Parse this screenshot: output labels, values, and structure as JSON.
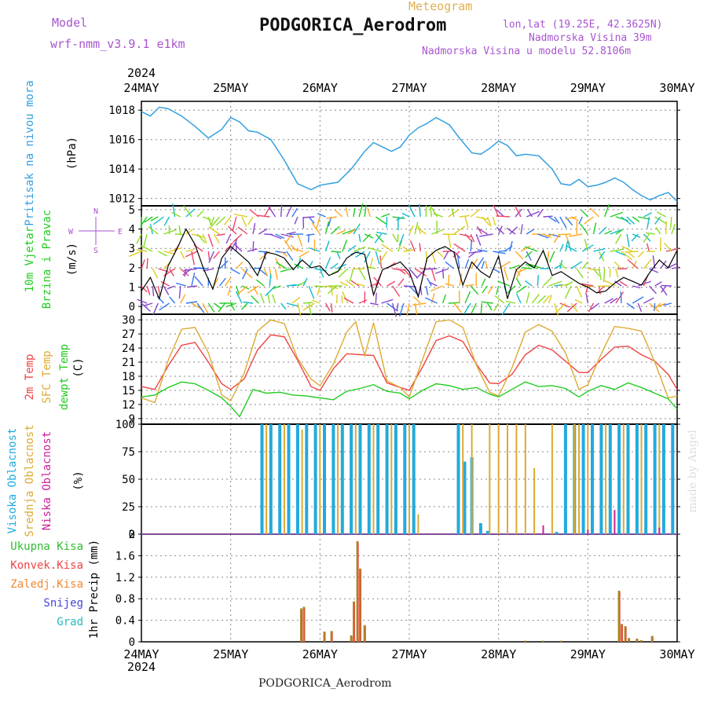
{
  "header": {
    "model_label": "Model",
    "model_value": "wrf-nmm_v3.9.1 e1km",
    "meteogram_label": "Meteogram",
    "station": "PODGORICA_Aerodrom",
    "lonlat": "lon,lat (19.25E, 42.3625N)",
    "elevation": "Nadmorska Visina 39m",
    "model_elevation": "Nadmorska Visina u modelu 52.8106m",
    "footer_station": "PODGORICA_Aerodrom",
    "watermark": "made by Angel",
    "year": "2024"
  },
  "colors": {
    "pressure": "#33a0e0",
    "wind_speed": "#000000",
    "t2m": "#ee4444",
    "sfc_temp": "#ddaa33",
    "dewpt": "#22cc22",
    "cloud_high": "#22aadd",
    "cloud_mid": "#ddaa33",
    "cloud_low": "#cc2299",
    "precip_total": "#33bb33",
    "precip_conv": "#ee4444",
    "precip_gr": "#aa8822",
    "title_purple": "#a855d0",
    "meteogram_gold": "#e0b050"
  },
  "chart_data": [
    {
      "type": "line",
      "x_ticks": [
        "24MAY",
        "25MAY",
        "26MAY",
        "27MAY",
        "28MAY",
        "29MAY",
        "30MAY"
      ],
      "ylabel": [
        "Pritisak na nivou mora",
        "(hPa)"
      ],
      "ylim": [
        1011.5,
        1018.6
      ],
      "yticks": [
        1012,
        1014,
        1016,
        1018
      ],
      "series": [
        {
          "name": "Pritisak na nivou mora",
          "x": [
            0,
            0.1,
            0.2,
            0.3,
            0.45,
            0.6,
            0.75,
            0.9,
            1.0,
            1.1,
            1.2,
            1.3,
            1.45,
            1.6,
            1.75,
            1.9,
            2.0,
            2.1,
            2.2,
            2.35,
            2.5,
            2.6,
            2.7,
            2.8,
            2.9,
            3.0,
            3.1,
            3.2,
            3.3,
            3.45,
            3.55,
            3.7,
            3.8,
            3.9,
            4.0,
            4.1,
            4.2,
            4.3,
            4.45,
            4.6,
            4.7,
            4.8,
            4.9,
            5.0,
            5.1,
            5.2,
            5.3,
            5.4,
            5.5,
            5.6,
            5.7,
            5.8,
            5.9,
            6.0
          ],
          "y": [
            1017.9,
            1017.6,
            1018.2,
            1018.1,
            1017.6,
            1016.9,
            1016.1,
            1016.7,
            1017.5,
            1017.2,
            1016.6,
            1016.5,
            1016.0,
            1014.6,
            1013.0,
            1012.6,
            1012.9,
            1013.0,
            1013.1,
            1014.0,
            1015.2,
            1015.8,
            1015.5,
            1015.2,
            1015.5,
            1016.3,
            1016.8,
            1017.1,
            1017.5,
            1017.0,
            1016.2,
            1015.1,
            1015.0,
            1015.4,
            1015.9,
            1015.6,
            1014.9,
            1015.0,
            1014.9,
            1014.0,
            1013.0,
            1012.9,
            1013.3,
            1012.8,
            1012.9,
            1013.1,
            1013.4,
            1013.1,
            1012.6,
            1012.2,
            1011.9,
            1012.2,
            1012.4,
            1011.8
          ]
        }
      ]
    },
    {
      "type": "line",
      "x_ticks": [
        "24MAY",
        "25MAY",
        "26MAY",
        "27MAY",
        "28MAY",
        "29MAY",
        "30MAY"
      ],
      "ylabel": [
        "10m Vjetar",
        "Brzina i Pravac",
        "(m/s)"
      ],
      "ylim": [
        -0.4,
        5.2
      ],
      "yticks": [
        0,
        1,
        2,
        3,
        4,
        5
      ],
      "series": [
        {
          "name": "Brzina",
          "x": [
            0,
            0.1,
            0.2,
            0.3,
            0.4,
            0.5,
            0.6,
            0.7,
            0.8,
            0.9,
            1.0,
            1.1,
            1.2,
            1.3,
            1.4,
            1.5,
            1.6,
            1.7,
            1.8,
            1.9,
            2.0,
            2.1,
            2.2,
            2.3,
            2.4,
            2.5,
            2.6,
            2.7,
            2.8,
            2.9,
            3.0,
            3.1,
            3.2,
            3.3,
            3.4,
            3.5,
            3.6,
            3.7,
            3.8,
            3.9,
            4.0,
            4.1,
            4.2,
            4.3,
            4.4,
            4.5,
            4.6,
            4.7,
            4.8,
            4.9,
            5.0,
            5.1,
            5.2,
            5.3,
            5.4,
            5.5,
            5.6,
            5.7,
            5.8,
            5.9,
            6.0
          ],
          "y": [
            0.8,
            1.5,
            0.4,
            2.1,
            3.0,
            4.0,
            3.2,
            1.9,
            0.9,
            2.5,
            3.1,
            2.7,
            2.3,
            1.6,
            2.8,
            2.7,
            2.5,
            1.9,
            2.4,
            2.0,
            2.1,
            1.6,
            1.8,
            2.5,
            2.8,
            2.7,
            0.6,
            1.9,
            2.1,
            2.3,
            1.8,
            0.5,
            2.5,
            2.9,
            3.1,
            2.8,
            1.1,
            2.3,
            1.8,
            1.5,
            2.6,
            0.4,
            1.9,
            2.3,
            2.0,
            2.9,
            1.6,
            1.8,
            1.5,
            1.2,
            1.0,
            0.7,
            0.8,
            1.2,
            1.5,
            1.3,
            1.1,
            1.8,
            2.4,
            2.0,
            2.9
          ]
        }
      ],
      "legend_side": [
        "N",
        "E",
        "W",
        "S"
      ]
    },
    {
      "type": "line",
      "x_ticks": [
        "24MAY",
        "25MAY",
        "26MAY",
        "27MAY",
        "28MAY",
        "29MAY",
        "30MAY"
      ],
      "ylabel": [
        "2m Temp",
        "SFC Temp",
        "dewpt Temp",
        "(C)"
      ],
      "ylim": [
        7.8,
        31.2
      ],
      "yticks": [
        9,
        12,
        15,
        18,
        21,
        24,
        27,
        30
      ],
      "series": [
        {
          "name": "2m Temp",
          "x": [
            0,
            0.15,
            0.3,
            0.45,
            0.6,
            0.75,
            0.9,
            1.0,
            1.15,
            1.3,
            1.45,
            1.6,
            1.75,
            1.9,
            2.0,
            2.15,
            2.3,
            2.45,
            2.6,
            2.75,
            2.9,
            3.0,
            3.15,
            3.3,
            3.45,
            3.6,
            3.75,
            3.9,
            4.0,
            4.15,
            4.3,
            4.45,
            4.6,
            4.75,
            4.9,
            5.0,
            5.15,
            5.3,
            5.45,
            5.6,
            5.75,
            5.9,
            6.0
          ],
          "y": [
            15.8,
            15.2,
            20.2,
            24.6,
            25.2,
            21.0,
            16.4,
            15.2,
            17.4,
            23.6,
            26.8,
            26.4,
            21.4,
            15.8,
            15.0,
            19.6,
            22.8,
            22.6,
            22.4,
            16.6,
            15.6,
            15.0,
            20.0,
            25.6,
            26.6,
            25.4,
            20.6,
            16.6,
            16.4,
            18.4,
            22.6,
            24.6,
            23.6,
            21.2,
            18.8,
            18.8,
            21.6,
            24.2,
            24.4,
            22.6,
            21.2,
            18.4,
            15.2
          ]
        },
        {
          "name": "SFC Temp",
          "x": [
            0,
            0.15,
            0.3,
            0.45,
            0.6,
            0.75,
            0.9,
            1.0,
            1.15,
            1.3,
            1.45,
            1.6,
            1.75,
            1.9,
            2.0,
            2.15,
            2.3,
            2.4,
            2.5,
            2.6,
            2.75,
            2.9,
            3.0,
            3.15,
            3.3,
            3.45,
            3.6,
            3.75,
            3.9,
            4.0,
            4.15,
            4.3,
            4.45,
            4.6,
            4.75,
            4.9,
            5.0,
            5.15,
            5.3,
            5.45,
            5.6,
            5.75,
            5.9,
            6.0
          ],
          "y": [
            13.4,
            12.4,
            21.4,
            28.0,
            28.4,
            23.0,
            14.0,
            12.8,
            18.6,
            27.6,
            30.0,
            29.2,
            21.8,
            17.4,
            16.0,
            20.6,
            27.4,
            29.6,
            22.4,
            29.4,
            17.0,
            15.6,
            13.6,
            21.6,
            29.6,
            30.0,
            28.4,
            20.4,
            14.6,
            13.8,
            19.8,
            27.4,
            29.0,
            27.6,
            23.0,
            15.2,
            16.2,
            22.8,
            28.6,
            28.2,
            27.6,
            21.0,
            13.4,
            13.8
          ]
        },
        {
          "name": "dewpt Temp",
          "x": [
            0,
            0.15,
            0.3,
            0.45,
            0.6,
            0.75,
            0.9,
            1.0,
            1.1,
            1.25,
            1.4,
            1.55,
            1.7,
            1.85,
            2.0,
            2.15,
            2.3,
            2.45,
            2.6,
            2.75,
            2.9,
            3.0,
            3.15,
            3.3,
            3.45,
            3.6,
            3.75,
            3.9,
            4.0,
            4.15,
            4.3,
            4.45,
            4.6,
            4.75,
            4.9,
            5.0,
            5.15,
            5.3,
            5.45,
            5.6,
            5.75,
            5.9,
            6.0
          ],
          "y": [
            13.6,
            14.0,
            15.6,
            16.8,
            16.4,
            15.0,
            13.4,
            11.6,
            9.4,
            15.2,
            14.4,
            14.6,
            14.0,
            13.8,
            13.4,
            13.0,
            14.8,
            15.4,
            16.2,
            14.8,
            14.4,
            13.2,
            15.0,
            16.4,
            16.0,
            15.2,
            15.6,
            14.2,
            13.6,
            15.2,
            16.8,
            15.8,
            16.0,
            15.4,
            13.6,
            14.8,
            16.0,
            15.2,
            16.6,
            15.6,
            14.4,
            13.2,
            11.0
          ]
        }
      ]
    },
    {
      "type": "bar",
      "x_ticks": [
        "24MAY",
        "25MAY",
        "26MAY",
        "27MAY",
        "28MAY",
        "29MAY",
        "30MAY"
      ],
      "ylabel": [
        "Visoka Oblacnost",
        "Srednja Oblacnost",
        "Niska Oblacnost",
        "(%)"
      ],
      "ylim": [
        0,
        100
      ],
      "yticks": [
        0,
        25,
        50,
        75,
        100
      ],
      "series": [
        {
          "name": "Visoka Oblacnost",
          "x": [
            0.0,
            0.5,
            1.0,
            1.35,
            1.45,
            1.55,
            1.65,
            1.75,
            1.85,
            1.95,
            2.05,
            2.15,
            2.25,
            2.35,
            2.45,
            2.55,
            2.65,
            2.75,
            2.85,
            2.95,
            3.05,
            3.15,
            3.25,
            3.35,
            3.45,
            3.55,
            3.62,
            3.7,
            3.8,
            3.88,
            3.95,
            4.05,
            4.15,
            4.25,
            4.35,
            4.45,
            4.55,
            4.65,
            4.75,
            4.85,
            4.95,
            5.05,
            5.15,
            5.25,
            5.35,
            5.45,
            5.55,
            5.65,
            5.75,
            5.85,
            5.95
          ],
          "y": [
            0,
            0,
            0,
            100,
            100,
            100,
            100,
            100,
            100,
            100,
            100,
            100,
            100,
            100,
            100,
            100,
            100,
            100,
            100,
            100,
            100,
            0,
            0,
            0,
            0,
            100,
            66,
            70,
            10,
            3,
            0,
            0,
            0,
            0,
            0,
            0,
            0,
            2,
            100,
            100,
            100,
            100,
            100,
            100,
            100,
            100,
            100,
            100,
            100,
            100,
            100
          ]
        },
        {
          "name": "Srednja Oblacnost",
          "x": [
            1.4,
            1.6,
            1.8,
            2.0,
            2.2,
            2.4,
            2.6,
            2.8,
            3.0,
            3.1,
            3.6,
            3.7,
            3.9,
            4.0,
            4.1,
            4.2,
            4.3,
            4.4,
            4.6,
            4.85,
            4.9,
            5.0,
            5.2,
            5.4,
            5.6,
            5.8
          ],
          "y": [
            100,
            100,
            95,
            100,
            100,
            100,
            100,
            100,
            100,
            18,
            100,
            100,
            100,
            100,
            100,
            100,
            100,
            60,
            100,
            100,
            100,
            100,
            100,
            100,
            100,
            100
          ]
        },
        {
          "name": "Niska Oblacnost",
          "x": [
            1.5,
            2.0,
            2.5,
            3.0,
            4.5,
            5.0,
            5.3,
            5.8
          ],
          "y": [
            0,
            0,
            0,
            0,
            8,
            4,
            22,
            6
          ]
        }
      ]
    },
    {
      "type": "bar",
      "x_ticks": [
        "24MAY",
        "25MAY",
        "26MAY",
        "27MAY",
        "28MAY",
        "29MAY",
        "30MAY"
      ],
      "ylabel": [
        "1hr Precip (mm)"
      ],
      "ylim": [
        0,
        2.0
      ],
      "yticks": [
        0,
        0.4,
        0.8,
        1.2,
        1.6,
        2
      ],
      "legend": [
        "Ukupna Kisa",
        "Konvek.Kisa",
        "Zaledj.Kisa",
        "Snijeg",
        "Grad"
      ],
      "series": [
        {
          "name": "Ukupna Kisa",
          "x": [
            1.79,
            1.82,
            2.05,
            2.13,
            2.35,
            2.38,
            2.42,
            2.45,
            2.5,
            4.3,
            4.5,
            4.7,
            5.35,
            5.38,
            5.42,
            5.46,
            5.55,
            5.6,
            5.72
          ],
          "y": [
            0.62,
            0.65,
            0.19,
            0.2,
            0.12,
            0.75,
            1.87,
            1.36,
            0.31,
            0.02,
            0.02,
            0.02,
            0.95,
            0.33,
            0.29,
            0.07,
            0.06,
            0.03,
            0.11
          ]
        }
      ]
    }
  ]
}
